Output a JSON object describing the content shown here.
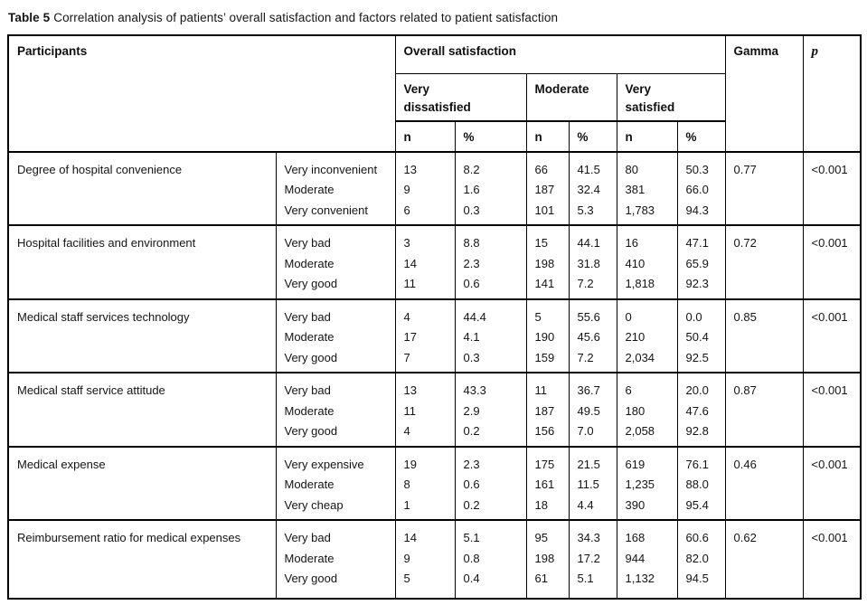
{
  "caption": {
    "label": "Table 5",
    "text": "Correlation analysis of patients’ overall satisfaction and factors related to patient satisfaction"
  },
  "table": {
    "header": {
      "participants": "Participants",
      "overall_satisfaction": "Overall satisfaction",
      "groups": [
        "Very dissatisfied",
        "Moderate",
        "Very satisfied"
      ],
      "sub": [
        "n",
        "%"
      ],
      "gamma": "Gamma",
      "p": "p"
    },
    "rows": [
      {
        "factor": "Degree of hospital convenience",
        "levels": [
          "Very inconvenient",
          "Moderate",
          "Very convenient"
        ],
        "vd_n": [
          "13",
          "9",
          "6"
        ],
        "vd_pct": [
          "8.2",
          "1.6",
          "0.3"
        ],
        "mod_n": [
          "66",
          "187",
          "101"
        ],
        "mod_pct": [
          "41.5",
          "32.4",
          "5.3"
        ],
        "vs_n": [
          "80",
          "381",
          "1,783"
        ],
        "vs_pct": [
          "50.3",
          "66.0",
          "94.3"
        ],
        "gamma": "0.77",
        "p": "<0.001"
      },
      {
        "factor": "Hospital facilities and environment",
        "levels": [
          "Very bad",
          "Moderate",
          "Very good"
        ],
        "vd_n": [
          "3",
          "14",
          "11"
        ],
        "vd_pct": [
          "8.8",
          "2.3",
          "0.6"
        ],
        "mod_n": [
          "15",
          "198",
          "141"
        ],
        "mod_pct": [
          "44.1",
          "31.8",
          "7.2"
        ],
        "vs_n": [
          "16",
          "410",
          "1,818"
        ],
        "vs_pct": [
          "47.1",
          "65.9",
          "92.3"
        ],
        "gamma": "0.72",
        "p": "<0.001"
      },
      {
        "factor": "Medical staff services technology",
        "levels": [
          "Very bad",
          "Moderate",
          "Very good"
        ],
        "vd_n": [
          "4",
          "17",
          "7"
        ],
        "vd_pct": [
          "44.4",
          "4.1",
          "0.3"
        ],
        "mod_n": [
          "5",
          "190",
          "159"
        ],
        "mod_pct": [
          "55.6",
          "45.6",
          "7.2"
        ],
        "vs_n": [
          "0",
          "210",
          "2,034"
        ],
        "vs_pct": [
          "0.0",
          "50.4",
          "92.5"
        ],
        "gamma": "0.85",
        "p": "<0.001"
      },
      {
        "factor": "Medical staff service attitude",
        "levels": [
          "Very bad",
          "Moderate",
          "Very good"
        ],
        "vd_n": [
          "13",
          "11",
          "4"
        ],
        "vd_pct": [
          "43.3",
          "2.9",
          "0.2"
        ],
        "mod_n": [
          "11",
          "187",
          "156"
        ],
        "mod_pct": [
          "36.7",
          "49.5",
          "7.0"
        ],
        "vs_n": [
          "6",
          "180",
          "2,058"
        ],
        "vs_pct": [
          "20.0",
          "47.6",
          "92.8"
        ],
        "gamma": "0.87",
        "p": "<0.001"
      },
      {
        "factor": "Medical expense",
        "levels": [
          "Very expensive",
          "Moderate",
          "Very cheap"
        ],
        "vd_n": [
          "19",
          "8",
          "1"
        ],
        "vd_pct": [
          "2.3",
          "0.6",
          "0.2"
        ],
        "mod_n": [
          "175",
          "161",
          "18"
        ],
        "mod_pct": [
          "21.5",
          "11.5",
          "4.4"
        ],
        "vs_n": [
          "619",
          "1,235",
          "390"
        ],
        "vs_pct": [
          "76.1",
          "88.0",
          "95.4"
        ],
        "gamma": "0.46",
        "p": "<0.001"
      },
      {
        "factor": "Reimbursement ratio for medical expenses",
        "levels": [
          "Very bad",
          "Moderate",
          "Very good"
        ],
        "vd_n": [
          "14",
          "9",
          "5"
        ],
        "vd_pct": [
          "5.1",
          "0.8",
          "0.4"
        ],
        "mod_n": [
          "95",
          "198",
          "61"
        ],
        "mod_pct": [
          "34.3",
          "17.2",
          "5.1"
        ],
        "vs_n": [
          "168",
          "944",
          "1,132"
        ],
        "vs_pct": [
          "60.6",
          "82.0",
          "94.5"
        ],
        "gamma": "0.62",
        "p": "<0.001"
      }
    ]
  }
}
